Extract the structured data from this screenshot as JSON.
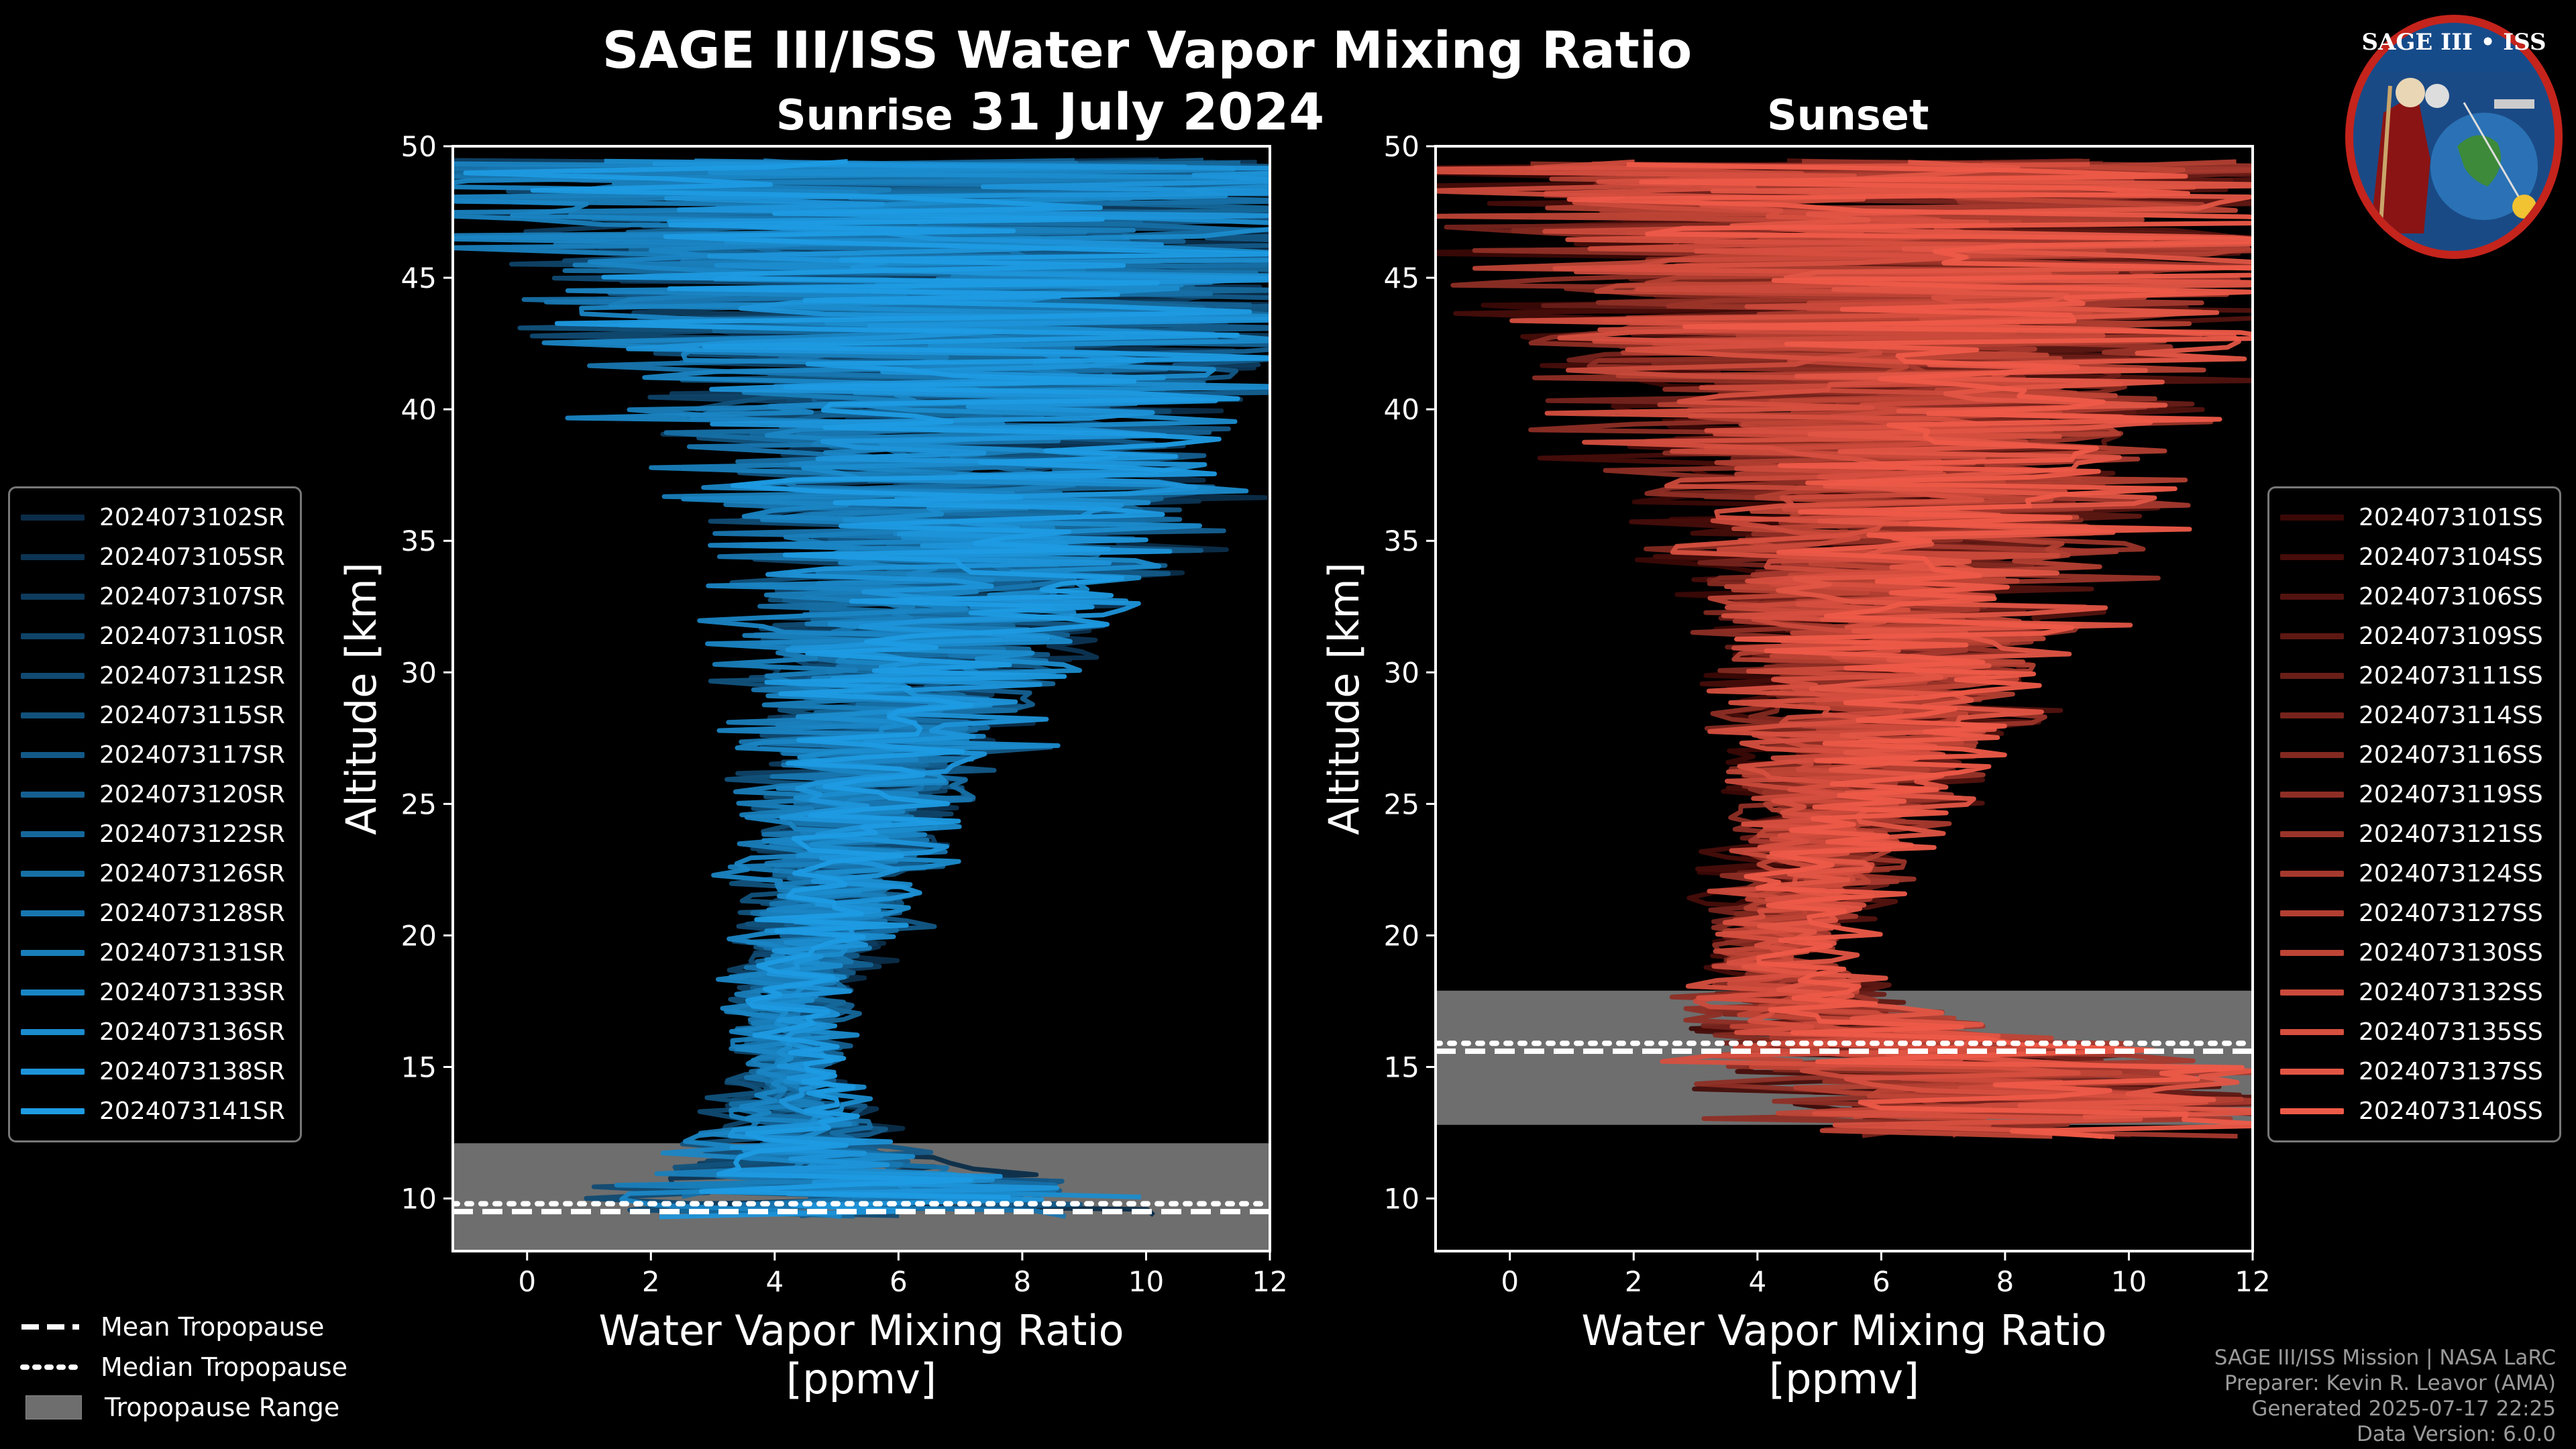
{
  "title": "SAGE III/ISS Water Vapor Mixing Ratio",
  "date": "31 July 2024",
  "panels": {
    "sunrise": {
      "label": "Sunrise"
    },
    "sunset": {
      "label": "Sunset"
    }
  },
  "badge": {
    "text": "SAGE III • ISS"
  },
  "legend_sunrise": [
    "2024073102SR",
    "2024073105SR",
    "2024073107SR",
    "2024073110SR",
    "2024073112SR",
    "2024073115SR",
    "2024073117SR",
    "2024073120SR",
    "2024073122SR",
    "2024073126SR",
    "2024073128SR",
    "2024073131SR",
    "2024073133SR",
    "2024073136SR",
    "2024073138SR",
    "2024073141SR"
  ],
  "legend_sunset": [
    "2024073101SS",
    "2024073104SS",
    "2024073106SS",
    "2024073109SS",
    "2024073111SS",
    "2024073114SS",
    "2024073116SS",
    "2024073119SS",
    "2024073121SS",
    "2024073124SS",
    "2024073127SS",
    "2024073130SS",
    "2024073132SS",
    "2024073135SS",
    "2024073137SS",
    "2024073140SS"
  ],
  "bottom_legend": {
    "mean": "Mean Tropopause",
    "median": "Median Tropopause",
    "range": "Tropopause Range"
  },
  "credits": {
    "line1": "SAGE III/ISS Mission | NASA LaRC",
    "line2": "Preparer: Kevin R. Leavor (AMA)",
    "line3": "Generated 2025-07-17 22:25",
    "line4": "Data Version: 6.0.0"
  },
  "colors": {
    "sunrise_dark": "#0b2d49",
    "sunrise_light": "#1e9be3",
    "sunset_dark": "#3a0806",
    "sunset_light": "#ee5a48",
    "tropopause_range": "#6e6e6e"
  },
  "chart_data": [
    {
      "type": "line",
      "title": "Sunrise",
      "xlabel": "Water Vapor Mixing Ratio\n[ppmv]",
      "ylabel": "Altitude [km]",
      "xlim": [
        -1.2,
        12
      ],
      "ylim": [
        8,
        50
      ],
      "xticks": [
        0,
        2,
        4,
        6,
        8,
        10,
        12
      ],
      "yticks": [
        10,
        15,
        20,
        25,
        30,
        35,
        40,
        45,
        50
      ],
      "profile_count": 16,
      "envelope": {
        "altitude": [
          9,
          10,
          12,
          15,
          18,
          20,
          23,
          25,
          28,
          30,
          33,
          35,
          38,
          40,
          43,
          46,
          49.5
        ],
        "center": [
          6.0,
          5.5,
          4.5,
          4.2,
          4.3,
          4.8,
          5.2,
          5.5,
          5.9,
          6.2,
          6.5,
          6.8,
          7.0,
          6.8,
          6.6,
          6.5,
          6.5
        ],
        "spread": [
          5.5,
          5.0,
          1.6,
          0.9,
          1.0,
          1.3,
          1.6,
          1.9,
          2.2,
          2.6,
          3.0,
          3.5,
          4.5,
          5.0,
          6.0,
          7.0,
          8.0
        ]
      },
      "tropopause": {
        "min_km": 8.0,
        "max_km": 12.1,
        "mean_km": 9.5,
        "median_km": 9.8
      }
    },
    {
      "type": "line",
      "title": "Sunset",
      "xlabel": "Water Vapor Mixing Ratio\n[ppmv]",
      "ylabel": "Altitude [km]",
      "xlim": [
        -1.2,
        12
      ],
      "ylim": [
        8,
        50
      ],
      "xticks": [
        0,
        2,
        4,
        6,
        8,
        10,
        12
      ],
      "yticks": [
        10,
        15,
        20,
        25,
        30,
        35,
        40,
        45,
        50
      ],
      "profile_count": 16,
      "envelope": {
        "altitude": [
          12,
          13,
          15,
          17,
          19,
          20,
          23,
          25,
          28,
          30,
          33,
          35,
          38,
          40,
          43,
          46,
          49.5
        ],
        "center": [
          9.0,
          8.5,
          7.5,
          5.0,
          4.2,
          4.5,
          5.0,
          5.4,
          5.8,
          6.0,
          6.1,
          6.2,
          6.3,
          6.3,
          6.2,
          6.0,
          6.0
        ],
        "spread": [
          4.0,
          4.0,
          4.0,
          2.0,
          1.0,
          1.2,
          1.6,
          1.9,
          2.3,
          2.8,
          3.2,
          3.6,
          4.3,
          4.8,
          5.8,
          6.5,
          7.5
        ]
      },
      "tropopause": {
        "min_km": 12.8,
        "max_km": 17.9,
        "mean_km": 15.6,
        "median_km": 15.9
      }
    }
  ]
}
